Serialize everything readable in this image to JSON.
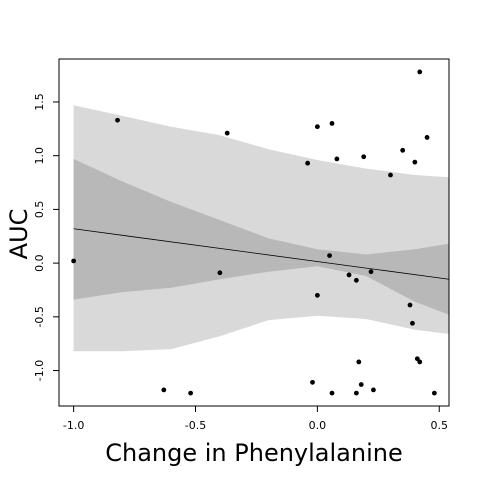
{
  "chart_data": {
    "type": "scatter",
    "title": "",
    "xlabel": "Change in Phenylalanine",
    "ylabel": "AUC",
    "xlim": [
      -1.06,
      0.54
    ],
    "ylim": [
      -1.33,
      1.9
    ],
    "x_ticks": [
      -1.0,
      -0.5,
      0.0,
      0.5
    ],
    "x_tick_labels": [
      "-1.0",
      "-0.5",
      "0.0",
      "0.5"
    ],
    "y_ticks": [
      -1.0,
      -0.5,
      0.0,
      0.5,
      1.0,
      1.5
    ],
    "y_tick_labels": [
      "-1.0",
      "-0.5",
      "0.0",
      "0.5",
      "1.0",
      "1.5"
    ],
    "grid": false,
    "legend": "none",
    "colors": {
      "outer_band": "#d9d9d9",
      "inner_band": "#b8b8b8",
      "line": "#000000",
      "points": "#000000"
    },
    "regression_line": {
      "x": [
        -1.0,
        0.54
      ],
      "y": [
        0.32,
        -0.15
      ]
    },
    "outer_band": {
      "x": [
        -1.0,
        -0.8,
        -0.6,
        -0.4,
        -0.2,
        0.0,
        0.2,
        0.4,
        0.54
      ],
      "upper": [
        1.47,
        1.37,
        1.27,
        1.19,
        1.06,
        0.96,
        0.88,
        0.82,
        0.8
      ],
      "lower": [
        -0.82,
        -0.82,
        -0.8,
        -0.68,
        -0.53,
        -0.49,
        -0.52,
        -0.62,
        -0.66
      ]
    },
    "inner_band": {
      "x": [
        -1.0,
        -0.8,
        -0.6,
        -0.4,
        -0.2,
        0.0,
        0.2,
        0.4,
        0.54
      ],
      "upper": [
        0.97,
        0.76,
        0.57,
        0.4,
        0.23,
        0.13,
        0.08,
        0.13,
        0.18
      ],
      "lower": [
        -0.34,
        -0.27,
        -0.23,
        -0.15,
        -0.08,
        -0.03,
        -0.12,
        -0.36,
        -0.48
      ]
    },
    "points": [
      {
        "x": -1.0,
        "y": 0.02
      },
      {
        "x": -0.82,
        "y": 1.33
      },
      {
        "x": -0.63,
        "y": -1.18
      },
      {
        "x": -0.52,
        "y": -1.21
      },
      {
        "x": -0.4,
        "y": -0.09
      },
      {
        "x": -0.37,
        "y": 1.21
      },
      {
        "x": -0.04,
        "y": 0.93
      },
      {
        "x": -0.02,
        "y": -1.11
      },
      {
        "x": 0.0,
        "y": 1.27
      },
      {
        "x": 0.0,
        "y": -0.3
      },
      {
        "x": 0.05,
        "y": 0.07
      },
      {
        "x": 0.06,
        "y": 1.3
      },
      {
        "x": 0.06,
        "y": -1.21
      },
      {
        "x": 0.08,
        "y": 0.97
      },
      {
        "x": 0.13,
        "y": -0.11
      },
      {
        "x": 0.16,
        "y": -0.16
      },
      {
        "x": 0.16,
        "y": -1.21
      },
      {
        "x": 0.17,
        "y": -0.92
      },
      {
        "x": 0.18,
        "y": -1.13
      },
      {
        "x": 0.19,
        "y": 0.99
      },
      {
        "x": 0.22,
        "y": -0.08
      },
      {
        "x": 0.23,
        "y": -1.18
      },
      {
        "x": 0.3,
        "y": 0.82
      },
      {
        "x": 0.35,
        "y": 1.05
      },
      {
        "x": 0.38,
        "y": -0.39
      },
      {
        "x": 0.39,
        "y": -0.56
      },
      {
        "x": 0.4,
        "y": 0.94
      },
      {
        "x": 0.41,
        "y": -0.89
      },
      {
        "x": 0.42,
        "y": 1.78
      },
      {
        "x": 0.42,
        "y": -0.92
      },
      {
        "x": 0.45,
        "y": 1.17
      },
      {
        "x": 0.48,
        "y": -1.21
      }
    ]
  }
}
